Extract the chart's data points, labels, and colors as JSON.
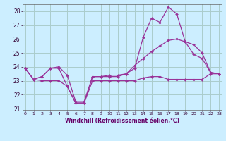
{
  "xlabel": "Windchill (Refroidissement éolien,°C)",
  "background_color": "#cceeff",
  "grid_color": "#aacccc",
  "line_color": "#993399",
  "x_hours": [
    0,
    1,
    2,
    3,
    4,
    5,
    6,
    7,
    8,
    9,
    10,
    11,
    12,
    13,
    14,
    15,
    16,
    17,
    18,
    19,
    20,
    21,
    22,
    23
  ],
  "line1": [
    23.9,
    23.1,
    23.0,
    23.0,
    23.0,
    22.6,
    21.4,
    21.4,
    23.0,
    23.0,
    23.0,
    23.0,
    23.0,
    23.0,
    23.2,
    23.3,
    23.3,
    23.1,
    23.1,
    23.1,
    23.1,
    23.1,
    23.5,
    23.5
  ],
  "line2": [
    23.9,
    23.1,
    23.3,
    23.9,
    24.0,
    23.4,
    21.5,
    21.5,
    23.3,
    23.3,
    23.4,
    23.4,
    23.5,
    24.1,
    24.6,
    25.1,
    25.5,
    25.9,
    26.0,
    25.8,
    25.6,
    25.0,
    23.6,
    23.5
  ],
  "line3": [
    23.9,
    23.1,
    23.3,
    23.9,
    23.9,
    22.6,
    21.4,
    21.4,
    23.3,
    23.3,
    23.3,
    23.3,
    23.5,
    23.9,
    26.1,
    27.5,
    27.2,
    28.3,
    27.8,
    25.8,
    24.9,
    24.6,
    23.6,
    23.5
  ],
  "ylim": [
    21,
    28.5
  ],
  "yticks": [
    21,
    22,
    23,
    24,
    25,
    26,
    27,
    28
  ],
  "xlim": [
    0,
    23
  ]
}
